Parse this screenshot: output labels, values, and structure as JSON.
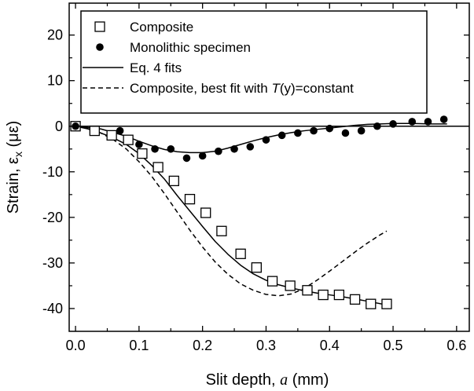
{
  "chart_data": {
    "type": "scatter",
    "xlabel": {
      "prefix": "Slit depth, ",
      "symbol": "a",
      "suffix": " (mm)"
    },
    "ylabel": {
      "prefix": "Strain, ε",
      "subscript": "x",
      "suffix": " (με)"
    },
    "xlim": [
      -0.01,
      0.62
    ],
    "ylim": [
      -45,
      27
    ],
    "x_ticks": [
      0.0,
      0.1,
      0.2,
      0.3,
      0.4,
      0.5,
      0.6
    ],
    "x_tick_labels": [
      "0.0",
      "0.1",
      "0.2",
      "0.3",
      "0.4",
      "0.5",
      "0.6"
    ],
    "y_ticks": [
      20,
      10,
      0,
      -10,
      -20,
      -30,
      -40
    ],
    "y_tick_labels": [
      "20",
      "10",
      "0",
      "-10",
      "-20",
      "-30",
      "-40"
    ],
    "zero_line": true,
    "grid": false,
    "legend_position": "top-left",
    "colors": {
      "ink": "#000000",
      "background": "#ffffff"
    },
    "series": [
      {
        "name": "Composite",
        "kind": "scatter",
        "marker": "open-square",
        "x": [
          0.0,
          0.03,
          0.057,
          0.083,
          0.105,
          0.13,
          0.155,
          0.18,
          0.205,
          0.23,
          0.26,
          0.285,
          0.31,
          0.338,
          0.365,
          0.39,
          0.415,
          0.44,
          0.465,
          0.49
        ],
        "y": [
          0,
          -1,
          -2,
          -3,
          -6,
          -9,
          -12,
          -16,
          -19,
          -23,
          -28,
          -31,
          -34,
          -35,
          -36,
          -37,
          -37,
          -38,
          -39,
          -39
        ]
      },
      {
        "name": "Monolithic specimen",
        "kind": "scatter",
        "marker": "filled-circle",
        "x": [
          0.0,
          0.07,
          0.1,
          0.125,
          0.15,
          0.175,
          0.2,
          0.225,
          0.25,
          0.275,
          0.3,
          0.325,
          0.35,
          0.375,
          0.4,
          0.425,
          0.45,
          0.475,
          0.5,
          0.53,
          0.555,
          0.58
        ],
        "y": [
          0,
          -1,
          -4,
          -5,
          -5,
          -7,
          -6.5,
          -5.5,
          -5,
          -4.5,
          -3,
          -2,
          -1.5,
          -1,
          -0.5,
          -1.5,
          -1,
          0,
          0.5,
          1,
          1,
          1.5
        ]
      },
      {
        "name": "Eq. 4 fits",
        "kind": "line",
        "style": "solid",
        "segments": [
          {
            "x": [
              0.0,
              0.02,
              0.04,
              0.06,
              0.08,
              0.1,
              0.12,
              0.14,
              0.16,
              0.18,
              0.2,
              0.22,
              0.24,
              0.26,
              0.28,
              0.3,
              0.32,
              0.34,
              0.36,
              0.38,
              0.4,
              0.42,
              0.44,
              0.46,
              0.49
            ],
            "y": [
              0,
              -0.6,
              -1.5,
              -2.6,
              -4.0,
              -6.0,
              -8.6,
              -11.6,
              -15.2,
              -18.6,
              -22.0,
              -25.3,
              -28.1,
              -30.5,
              -32.4,
              -33.8,
              -34.8,
              -35.5,
              -36.1,
              -36.6,
              -37.0,
              -37.4,
              -37.9,
              -38.4,
              -39.2
            ]
          },
          {
            "x": [
              0.0,
              0.04,
              0.08,
              0.1,
              0.12,
              0.14,
              0.16,
              0.18,
              0.2,
              0.22,
              0.24,
              0.26,
              0.28,
              0.3,
              0.32,
              0.34,
              0.36,
              0.38,
              0.4,
              0.42,
              0.44,
              0.46,
              0.48,
              0.5,
              0.53,
              0.56,
              0.585
            ],
            "y": [
              0,
              -0.6,
              -2.2,
              -3.3,
              -4.3,
              -5.1,
              -5.6,
              -5.8,
              -5.8,
              -5.5,
              -4.8,
              -4.0,
              -3.2,
              -2.5,
              -1.9,
              -1.4,
              -1.0,
              -0.7,
              -0.4,
              -0.1,
              0.2,
              0.4,
              0.5,
              0.6,
              0.6,
              0.5,
              0.5
            ]
          }
        ]
      },
      {
        "name": "Composite, best fit with T(y)=constant",
        "legend_parts": [
          "Composite, best fit with ",
          "T",
          "(y)=constant"
        ],
        "kind": "line",
        "style": "dashed",
        "segments": [
          {
            "x": [
              0.0,
              0.02,
              0.04,
              0.06,
              0.08,
              0.1,
              0.12,
              0.14,
              0.16,
              0.18,
              0.2,
              0.22,
              0.24,
              0.26,
              0.28,
              0.3,
              0.32,
              0.34,
              0.36,
              0.38,
              0.4,
              0.42,
              0.44,
              0.46,
              0.48,
              0.49
            ],
            "y": [
              0,
              -0.5,
              -1.5,
              -3.0,
              -5.0,
              -7.8,
              -11.0,
              -14.8,
              -18.8,
              -22.8,
              -26.5,
              -29.8,
              -32.5,
              -34.6,
              -36.0,
              -36.9,
              -37.2,
              -36.8,
              -35.6,
              -33.8,
              -31.8,
              -29.7,
              -27.6,
              -25.6,
              -23.8,
              -23.0
            ]
          }
        ]
      }
    ]
  }
}
